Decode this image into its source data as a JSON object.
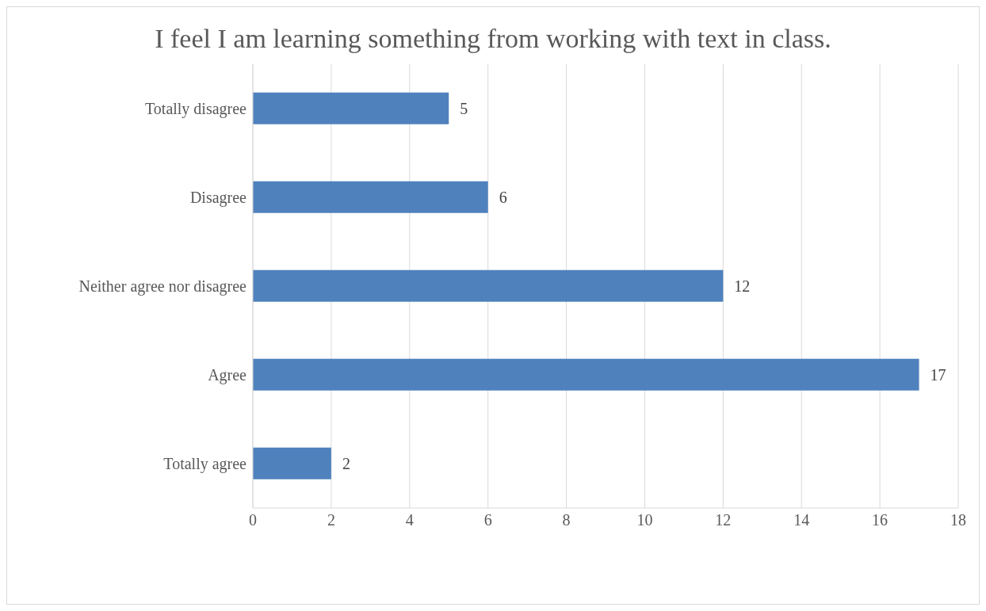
{
  "chart_data": {
    "type": "bar",
    "orientation": "horizontal",
    "title": "I feel I am learning something from working with text in class.",
    "categories": [
      "Totally disagree",
      "Disagree",
      "Neither agree nor disagree",
      "Agree",
      "Totally agree"
    ],
    "values": [
      5,
      6,
      12,
      17,
      2
    ],
    "color": "#4f81bd",
    "xlim": [
      0,
      18
    ],
    "xticks": [
      0,
      2,
      4,
      6,
      8,
      10,
      12,
      14,
      16,
      18
    ],
    "grid": "x",
    "data_labels": true
  }
}
